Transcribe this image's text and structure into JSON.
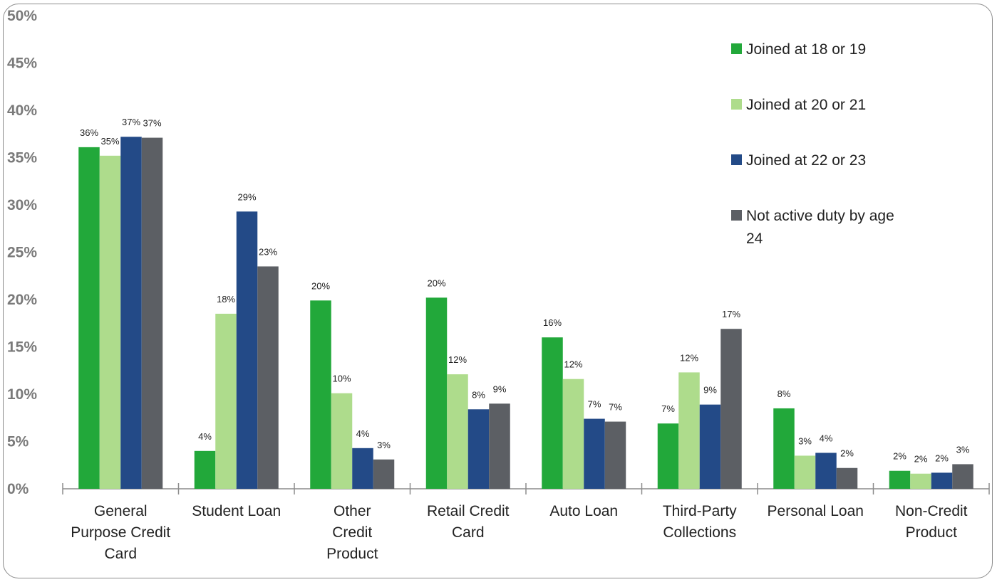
{
  "chart_data": {
    "type": "bar",
    "categories": [
      [
        "General",
        "Purpose Credit",
        "Card"
      ],
      [
        "Student Loan"
      ],
      [
        "Other",
        "Credit",
        "Product"
      ],
      [
        "Retail Credit",
        "Card"
      ],
      [
        "Auto Loan"
      ],
      [
        "Third-Party",
        "Collections"
      ],
      [
        "Personal Loan"
      ],
      [
        "Non-Credit",
        "Product"
      ]
    ],
    "series": [
      {
        "name": "Joined at 18 or 19",
        "color": "#22a83a",
        "values": [
          36.1,
          4.0,
          19.9,
          20.2,
          16.0,
          6.9,
          8.5,
          1.9
        ],
        "labels": [
          "36%",
          "4%",
          "20%",
          "20%",
          "16%",
          "7%",
          "8%",
          "2%"
        ]
      },
      {
        "name": "Joined at 20 or 21",
        "color": "#aedc8c",
        "values": [
          35.2,
          18.5,
          10.1,
          12.1,
          11.6,
          12.3,
          3.5,
          1.6
        ],
        "labels": [
          "35%",
          "18%",
          "10%",
          "12%",
          "12%",
          "12%",
          "3%",
          "2%"
        ]
      },
      {
        "name": "Joined at 22 or 23",
        "color": "#234a87",
        "values": [
          37.2,
          29.3,
          4.3,
          8.4,
          7.4,
          8.9,
          3.8,
          1.7
        ],
        "labels": [
          "37%",
          "29%",
          "4%",
          "8%",
          "7%",
          "9%",
          "4%",
          "2%"
        ]
      },
      {
        "name": "Not active duty by age 24",
        "legend_lines": [
          "Not active duty by age",
          "24"
        ],
        "color": "#5c5f64",
        "values": [
          37.1,
          23.5,
          3.1,
          9.0,
          7.1,
          16.9,
          2.2,
          2.6
        ],
        "labels": [
          "37%",
          "23%",
          "3%",
          "9%",
          "7%",
          "17%",
          "2%",
          "3%"
        ]
      }
    ],
    "yticks": [
      "0%",
      "5%",
      "10%",
      "15%",
      "20%",
      "25%",
      "30%",
      "35%",
      "40%",
      "45%",
      "50%"
    ],
    "ylim": [
      0,
      50
    ],
    "grid": false,
    "legend": "top-right"
  }
}
